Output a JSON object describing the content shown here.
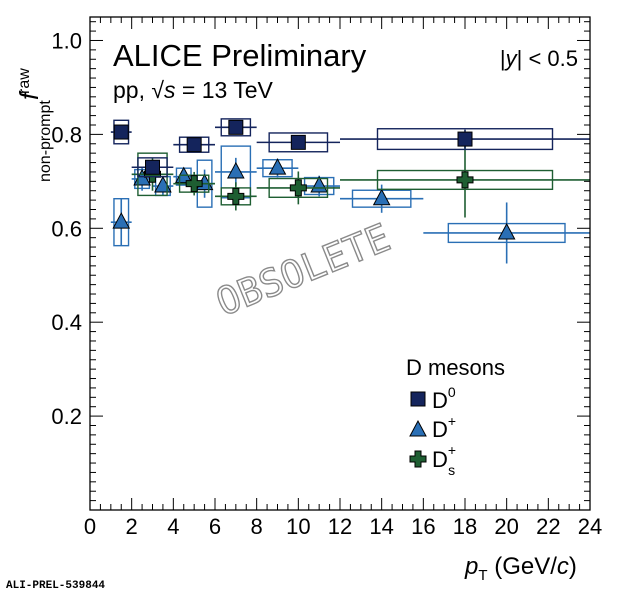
{
  "chart_data": {
    "type": "scatter",
    "title": "ALICE Preliminary",
    "subtitle_prefix": "pp, ",
    "subtitle_sqrt": "√",
    "subtitle_s": "s",
    "subtitle_suffix": " = 13 TeV",
    "rapidity": {
      "open": "|",
      "y": "y",
      "close": "| < 0.5"
    },
    "ylabel": {
      "main": "f",
      "sup": "raw",
      "sub": "non-prompt"
    },
    "xlabel": {
      "p": "p",
      "sub": "T",
      "units_open": " (GeV/",
      "c": "c",
      "units_close": ")"
    },
    "xlim": [
      0,
      24
    ],
    "ylim": [
      0,
      1.05
    ],
    "xticks": [
      0,
      2,
      4,
      6,
      8,
      10,
      12,
      14,
      16,
      18,
      20,
      22,
      24
    ],
    "yticks": [
      0.2,
      0.4,
      0.6,
      0.8,
      1.0
    ],
    "ytick_labels": [
      "0.2",
      "0.4",
      "0.6",
      "0.8",
      "1.0"
    ],
    "legend": {
      "header": "D mesons",
      "position": "bottom-right",
      "entries": [
        {
          "base": "D",
          "sup": "0",
          "sub": ""
        },
        {
          "base": "D",
          "sup": "+",
          "sub": ""
        },
        {
          "base": "D",
          "sup": "+",
          "sub": "s"
        }
      ]
    },
    "watermark": "OBSOLETE",
    "footer": "ALI-PREL-539844",
    "colors": {
      "D0": "#14245c",
      "Dplus": "#2a6fb5",
      "Ds": "#1e5e32"
    },
    "series": [
      {
        "name": "D0",
        "marker": "square",
        "points": [
          {
            "x": 1.5,
            "xlo": 1.0,
            "xhi": 2.0,
            "y": 0.805,
            "stat": 0.012,
            "syst": 0.025
          },
          {
            "x": 3.0,
            "xlo": 2.0,
            "xhi": 4.0,
            "y": 0.73,
            "stat": 0.012,
            "syst": 0.02
          },
          {
            "x": 5.0,
            "xlo": 4.0,
            "xhi": 6.0,
            "y": 0.778,
            "stat": 0.01,
            "syst": 0.016
          },
          {
            "x": 7.0,
            "xlo": 6.0,
            "xhi": 8.0,
            "y": 0.815,
            "stat": 0.012,
            "syst": 0.018
          },
          {
            "x": 10.0,
            "xlo": 8.0,
            "xhi": 12.0,
            "y": 0.783,
            "stat": 0.012,
            "syst": 0.02
          },
          {
            "x": 18.0,
            "xlo": 12.0,
            "xhi": 24.0,
            "y": 0.79,
            "stat": 0.02,
            "syst": 0.022
          }
        ]
      },
      {
        "name": "Dplus",
        "marker": "triangle",
        "points": [
          {
            "x": 1.5,
            "xlo": 1.0,
            "xhi": 2.0,
            "y": 0.613,
            "stat": 0.05,
            "syst": 0.05
          },
          {
            "x": 2.5,
            "xlo": 2.0,
            "xhi": 3.0,
            "y": 0.705,
            "stat": 0.025,
            "syst": 0.02
          },
          {
            "x": 3.5,
            "xlo": 3.0,
            "xhi": 4.0,
            "y": 0.69,
            "stat": 0.02,
            "syst": 0.02
          },
          {
            "x": 4.5,
            "xlo": 4.0,
            "xhi": 5.0,
            "y": 0.71,
            "stat": 0.018,
            "syst": 0.018
          },
          {
            "x": 5.5,
            "xlo": 5.0,
            "xhi": 6.0,
            "y": 0.695,
            "stat": 0.03,
            "syst": 0.05
          },
          {
            "x": 7.0,
            "xlo": 6.0,
            "xhi": 8.0,
            "y": 0.72,
            "stat": 0.03,
            "syst": 0.055
          },
          {
            "x": 9.0,
            "xlo": 8.0,
            "xhi": 10.0,
            "y": 0.728,
            "stat": 0.02,
            "syst": 0.018
          },
          {
            "x": 11.0,
            "xlo": 10.0,
            "xhi": 12.0,
            "y": 0.69,
            "stat": 0.022,
            "syst": 0.018
          },
          {
            "x": 14.0,
            "xlo": 12.0,
            "xhi": 16.0,
            "y": 0.663,
            "stat": 0.03,
            "syst": 0.018
          },
          {
            "x": 20.0,
            "xlo": 16.0,
            "xhi": 24.0,
            "y": 0.59,
            "stat": 0.065,
            "syst": 0.02
          }
        ]
      },
      {
        "name": "Ds",
        "marker": "cross",
        "points": [
          {
            "x": 3.0,
            "xlo": 2.0,
            "xhi": 4.0,
            "y": 0.715,
            "stat": 0.035,
            "syst": 0.045
          },
          {
            "x": 5.0,
            "xlo": 4.0,
            "xhi": 6.0,
            "y": 0.695,
            "stat": 0.025,
            "syst": 0.018
          },
          {
            "x": 7.0,
            "xlo": 6.0,
            "xhi": 8.0,
            "y": 0.668,
            "stat": 0.03,
            "syst": 0.018
          },
          {
            "x": 10.0,
            "xlo": 8.0,
            "xhi": 12.0,
            "y": 0.686,
            "stat": 0.035,
            "syst": 0.02
          },
          {
            "x": 18.0,
            "xlo": 12.0,
            "xhi": 24.0,
            "y": 0.703,
            "stat": 0.08,
            "syst": 0.02
          }
        ]
      }
    ]
  }
}
